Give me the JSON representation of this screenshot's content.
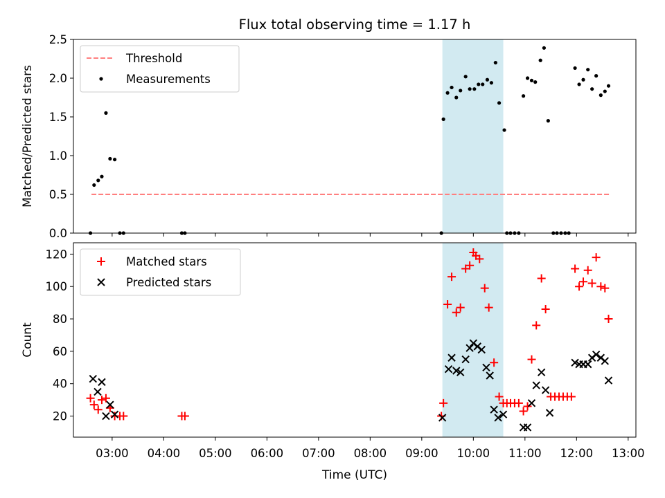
{
  "title": "Flux total observing time = 1.17 h",
  "colors": {
    "threshold": "#ff7f7f",
    "measurement": "#000000",
    "matched": "#ff0000",
    "predicted": "#000000",
    "span": "#add8e6"
  },
  "highlight_span": {
    "start": 9.4,
    "end": 10.58
  },
  "chart_data": [
    {
      "type": "scatter",
      "ylabel": "Matched/Predicted stars",
      "xlim": [
        2.25,
        13.15
      ],
      "ylim": [
        0,
        2.5
      ],
      "yticks": [
        0.0,
        0.5,
        1.0,
        1.5,
        2.0,
        2.5
      ],
      "ytick_labels": [
        "0.0",
        "0.5",
        "1.0",
        "1.5",
        "2.0",
        "2.5"
      ],
      "legend_location": "upper-left",
      "threshold": {
        "name": "Threshold",
        "value": 0.5,
        "x_range": [
          2.6,
          12.65
        ]
      },
      "series": [
        {
          "name": "Measurements",
          "points": [
            [
              2.58,
              0.0
            ],
            [
              2.65,
              0.62
            ],
            [
              2.73,
              0.68
            ],
            [
              2.8,
              0.73
            ],
            [
              2.88,
              1.55
            ],
            [
              2.96,
              0.96
            ],
            [
              3.05,
              0.95
            ],
            [
              3.15,
              0.0
            ],
            [
              3.22,
              0.0
            ],
            [
              4.35,
              0.0
            ],
            [
              4.41,
              0.0
            ],
            [
              9.38,
              0.0
            ],
            [
              9.42,
              1.47
            ],
            [
              9.5,
              1.81
            ],
            [
              9.58,
              1.88
            ],
            [
              9.67,
              1.75
            ],
            [
              9.75,
              1.84
            ],
            [
              9.85,
              2.02
            ],
            [
              9.93,
              1.86
            ],
            [
              10.02,
              1.86
            ],
            [
              10.1,
              1.92
            ],
            [
              10.18,
              1.92
            ],
            [
              10.27,
              1.98
            ],
            [
              10.35,
              1.94
            ],
            [
              10.43,
              2.2
            ],
            [
              10.5,
              1.68
            ],
            [
              10.6,
              1.33
            ],
            [
              10.65,
              0.0
            ],
            [
              10.72,
              0.0
            ],
            [
              10.8,
              0.0
            ],
            [
              10.88,
              0.0
            ],
            [
              10.97,
              1.77
            ],
            [
              11.05,
              2.0
            ],
            [
              11.13,
              1.97
            ],
            [
              11.2,
              1.95
            ],
            [
              11.3,
              2.23
            ],
            [
              11.37,
              2.39
            ],
            [
              11.45,
              1.45
            ],
            [
              11.55,
              0.0
            ],
            [
              11.62,
              0.0
            ],
            [
              11.7,
              0.0
            ],
            [
              11.78,
              0.0
            ],
            [
              11.85,
              0.0
            ],
            [
              11.97,
              2.13
            ],
            [
              12.05,
              1.92
            ],
            [
              12.13,
              1.98
            ],
            [
              12.22,
              2.11
            ],
            [
              12.3,
              1.86
            ],
            [
              12.38,
              2.03
            ],
            [
              12.47,
              1.78
            ],
            [
              12.55,
              1.83
            ],
            [
              12.62,
              1.9
            ]
          ]
        }
      ]
    },
    {
      "type": "scatter",
      "xlabel": "Time (UTC)",
      "ylabel": "Count",
      "xlim": [
        2.25,
        13.15
      ],
      "ylim": [
        7,
        127
      ],
      "yticks": [
        20,
        40,
        60,
        80,
        100,
        120
      ],
      "xticks": [
        3,
        4,
        5,
        6,
        7,
        8,
        9,
        10,
        11,
        12,
        13
      ],
      "xtick_labels": [
        "03:00",
        "04:00",
        "05:00",
        "06:00",
        "07:00",
        "08:00",
        "09:00",
        "10:00",
        "11:00",
        "12:00",
        "13:00"
      ],
      "legend_location": "upper-left",
      "series": [
        {
          "name": "Matched stars",
          "marker": "plus",
          "points": [
            [
              2.58,
              31
            ],
            [
              2.65,
              27
            ],
            [
              2.73,
              24
            ],
            [
              2.8,
              30
            ],
            [
              2.88,
              31
            ],
            [
              2.96,
              25
            ],
            [
              3.05,
              20
            ],
            [
              3.15,
              20
            ],
            [
              3.22,
              20
            ],
            [
              4.35,
              20
            ],
            [
              4.41,
              20
            ],
            [
              9.38,
              20
            ],
            [
              9.42,
              28
            ],
            [
              9.5,
              89
            ],
            [
              9.58,
              106
            ],
            [
              9.67,
              84
            ],
            [
              9.75,
              87
            ],
            [
              9.85,
              111
            ],
            [
              9.93,
              113
            ],
            [
              10.0,
              121
            ],
            [
              10.05,
              119
            ],
            [
              10.12,
              117
            ],
            [
              10.22,
              99
            ],
            [
              10.3,
              87
            ],
            [
              10.4,
              53
            ],
            [
              10.5,
              32
            ],
            [
              10.58,
              28
            ],
            [
              10.65,
              28
            ],
            [
              10.72,
              28
            ],
            [
              10.8,
              28
            ],
            [
              10.88,
              28
            ],
            [
              10.97,
              23
            ],
            [
              11.05,
              26
            ],
            [
              11.13,
              55
            ],
            [
              11.22,
              76
            ],
            [
              11.32,
              105
            ],
            [
              11.4,
              86
            ],
            [
              11.5,
              32
            ],
            [
              11.58,
              32
            ],
            [
              11.66,
              32
            ],
            [
              11.74,
              32
            ],
            [
              11.82,
              32
            ],
            [
              11.9,
              32
            ],
            [
              11.97,
              111
            ],
            [
              12.05,
              100
            ],
            [
              12.13,
              103
            ],
            [
              12.22,
              110
            ],
            [
              12.3,
              102
            ],
            [
              12.38,
              118
            ],
            [
              12.47,
              100
            ],
            [
              12.55,
              99
            ],
            [
              12.62,
              80
            ]
          ]
        },
        {
          "name": "Predicted stars",
          "marker": "x",
          "points": [
            [
              2.63,
              43
            ],
            [
              2.72,
              35
            ],
            [
              2.8,
              41
            ],
            [
              2.88,
              20
            ],
            [
              2.96,
              27
            ],
            [
              3.05,
              21
            ],
            [
              9.4,
              19
            ],
            [
              9.52,
              49
            ],
            [
              9.58,
              56
            ],
            [
              9.67,
              48
            ],
            [
              9.75,
              47
            ],
            [
              9.85,
              55
            ],
            [
              9.93,
              62
            ],
            [
              10.0,
              65
            ],
            [
              10.08,
              63
            ],
            [
              10.16,
              61
            ],
            [
              10.25,
              50
            ],
            [
              10.32,
              45
            ],
            [
              10.4,
              24
            ],
            [
              10.48,
              19
            ],
            [
              10.58,
              21
            ],
            [
              10.97,
              13
            ],
            [
              11.05,
              13
            ],
            [
              11.13,
              28
            ],
            [
              11.22,
              39
            ],
            [
              11.32,
              47
            ],
            [
              11.4,
              36
            ],
            [
              11.48,
              22
            ],
            [
              11.97,
              53
            ],
            [
              12.05,
              52
            ],
            [
              12.13,
              52
            ],
            [
              12.22,
              52
            ],
            [
              12.3,
              56
            ],
            [
              12.38,
              58
            ],
            [
              12.47,
              56
            ],
            [
              12.55,
              54
            ],
            [
              12.62,
              42
            ]
          ]
        }
      ]
    }
  ]
}
